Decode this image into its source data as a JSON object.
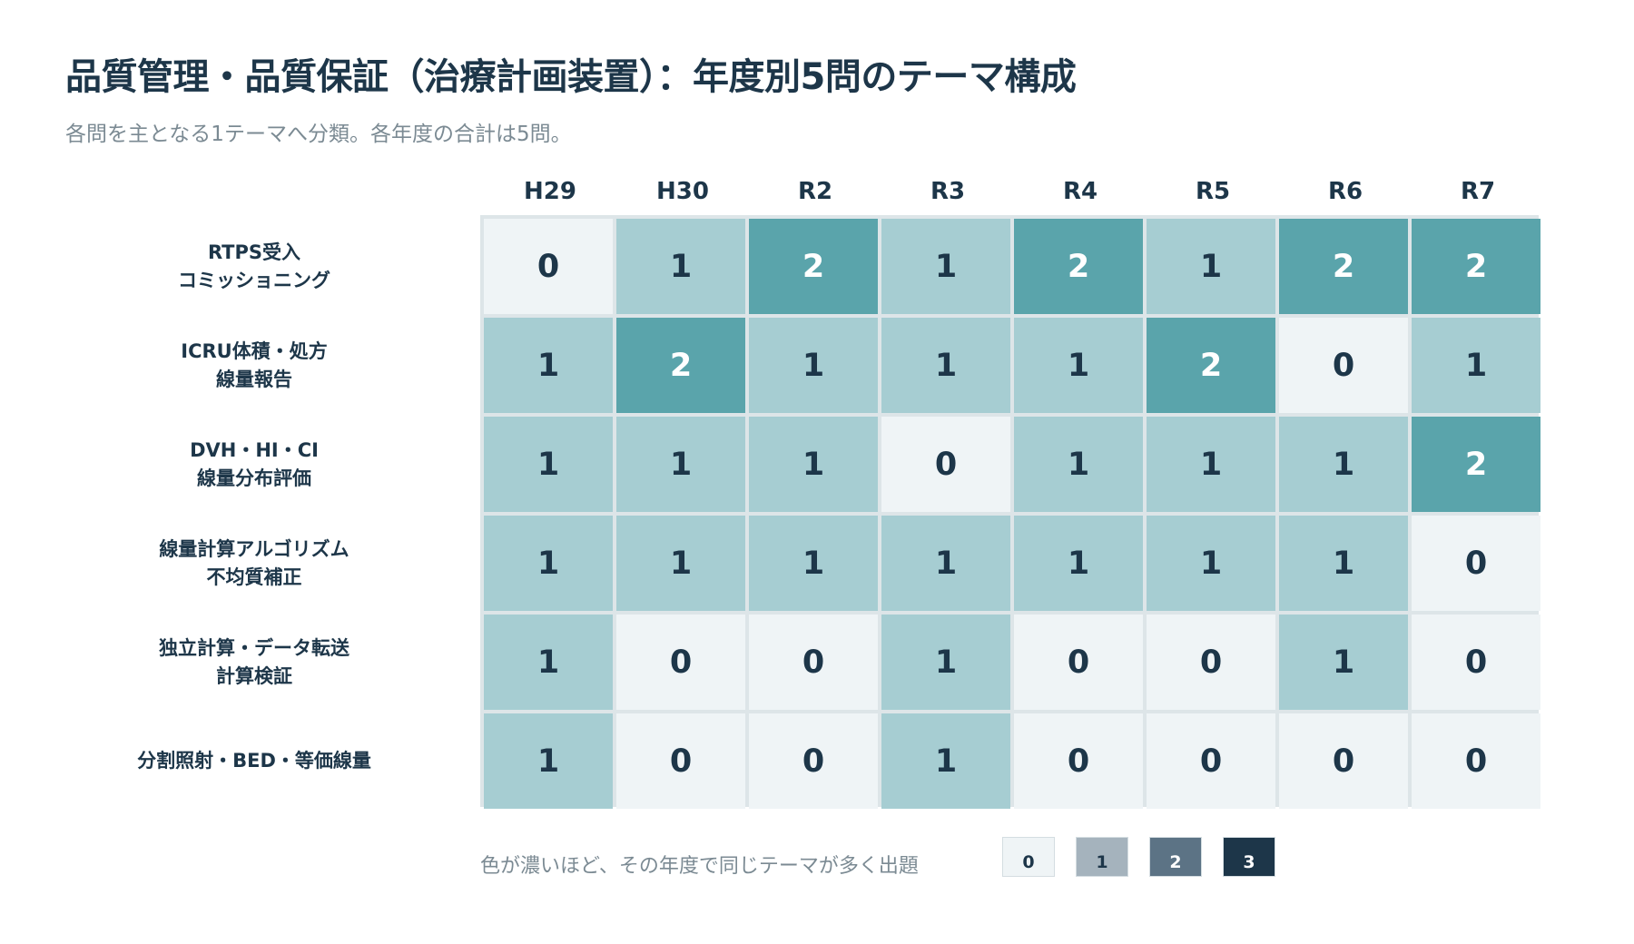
{
  "title": "品質管理・品質保証（治療計画装置）：年度別5問のテーマ構成",
  "subtitle": "各問を主となる1テーマへ分類。各年度の合計は5問。",
  "chart_data": {
    "type": "heatmap",
    "x": [
      "H29",
      "H30",
      "R2",
      "R3",
      "R4",
      "R5",
      "R6",
      "R7"
    ],
    "y": [
      [
        "RTPS受入",
        "コミッショニング"
      ],
      [
        "ICRU体積・処方",
        "線量報告"
      ],
      [
        "DVH・HI・CI",
        "線量分布評価"
      ],
      [
        "線量計算アルゴリズム",
        "不均質補正"
      ],
      [
        "独立計算・データ転送",
        "計算検証"
      ],
      [
        "分割照射・BED・等価線量"
      ]
    ],
    "values": [
      [
        0,
        1,
        2,
        1,
        2,
        1,
        2,
        2
      ],
      [
        1,
        2,
        1,
        1,
        1,
        2,
        0,
        1
      ],
      [
        1,
        1,
        1,
        0,
        1,
        1,
        1,
        2
      ],
      [
        1,
        1,
        1,
        1,
        1,
        1,
        1,
        0
      ],
      [
        1,
        0,
        0,
        1,
        0,
        0,
        1,
        0
      ],
      [
        1,
        0,
        0,
        1,
        0,
        0,
        0,
        0
      ]
    ],
    "cell_colors": {
      "0": "#eff4f6",
      "1": "#a6cdd2",
      "2": "#5aa4ab"
    },
    "cell_text_colors": {
      "0": "#1d3649",
      "1": "#1d3649",
      "2": "#ffffff"
    }
  },
  "legend": {
    "text": "色が濃いほど、その年度で同じテーマが多く出題",
    "items": [
      {
        "label": "0",
        "color": "#eff4f6",
        "text_color": "#1d3649",
        "border": "#d4dde1"
      },
      {
        "label": "1",
        "color": "#a5b3bd",
        "text_color": "#1d3649",
        "border": "#d4dde1"
      },
      {
        "label": "2",
        "color": "#5c7385",
        "text_color": "#ffffff",
        "border": "#d4dde1"
      },
      {
        "label": "3",
        "color": "#1d3649",
        "text_color": "#ffffff",
        "border": "#d4dde1"
      }
    ]
  }
}
